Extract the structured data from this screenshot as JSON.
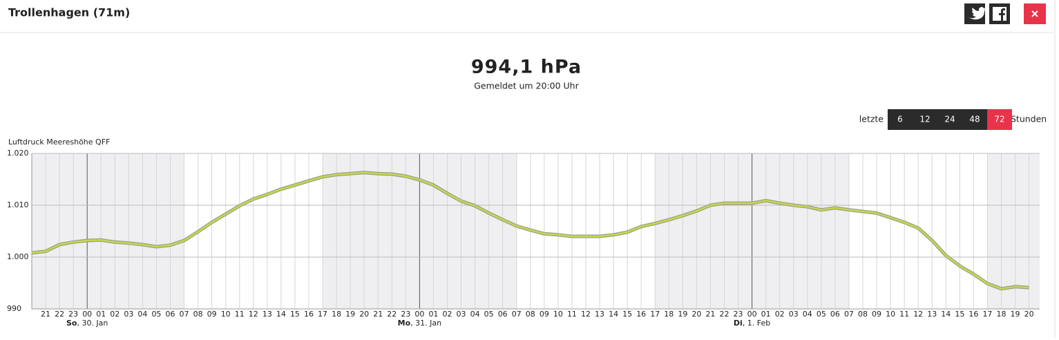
{
  "header": {
    "title": "Trollenhagen (71m)"
  },
  "reading": {
    "value": "994,1 hPa",
    "note": "Gemeldet um 20:00 Uhr"
  },
  "range": {
    "prefix": "letzte",
    "options": [
      "6",
      "12",
      "24",
      "48",
      "72"
    ],
    "selected": "72",
    "suffix": "Stunden"
  },
  "chart_data": {
    "type": "line",
    "y_label": "Luftdruck Meereshöhe QFF",
    "color": "#c8d84a",
    "ylim": [
      990,
      1020
    ],
    "yticks": [
      990,
      {
        "value": 1000,
        "label": "1.000"
      },
      {
        "value": 1010,
        "label": "1.010"
      },
      {
        "value": 1020,
        "label": "1.020"
      }
    ],
    "grid": true,
    "days": [
      {
        "hours": [
          null,
          "21",
          "22",
          "23"
        ]
      },
      {
        "weekday": "So",
        "date": ", 30. Jan",
        "hours": [
          "00",
          "01",
          "02",
          "03",
          "04",
          "05",
          "06",
          "07",
          "08",
          "09",
          "10",
          "11",
          "12",
          "13",
          "14",
          "15",
          "16",
          "17",
          "18",
          "19",
          "20",
          "21",
          "22",
          "23"
        ]
      },
      {
        "weekday": "Mo",
        "date": ", 31. Jan",
        "hours": [
          "00",
          "01",
          "02",
          "03",
          "04",
          "05",
          "06",
          "07",
          "08",
          "09",
          "10",
          "11",
          "12",
          "13",
          "14",
          "15",
          "16",
          "17",
          "18",
          "19",
          "20",
          "21",
          "22",
          "23"
        ]
      },
      {
        "weekday": "Di",
        "date": ", 1. Feb",
        "hours": [
          "00",
          "01",
          "02",
          "03",
          "04",
          "05",
          "06",
          "07",
          "08",
          "09",
          "10",
          "11",
          "12",
          "13",
          "14",
          "15",
          "16",
          "17",
          "18",
          "19",
          "20"
        ]
      }
    ],
    "values": [
      1000.8,
      1001.1,
      1002.4,
      1002.9,
      1003.2,
      1003.3,
      1002.9,
      1002.7,
      1002.4,
      1002.0,
      1002.3,
      1003.2,
      1004.9,
      1006.7,
      1008.3,
      1009.9,
      1011.2,
      1012.1,
      1013.1,
      1013.9,
      1014.7,
      1015.5,
      1015.9,
      1016.1,
      1016.3,
      1016.1,
      1016.0,
      1015.6,
      1014.9,
      1013.9,
      1012.3,
      1010.8,
      1009.9,
      1008.5,
      1007.2,
      1006.0,
      1005.2,
      1004.5,
      1004.3,
      1004.0,
      1004.0,
      1004.0,
      1004.3,
      1004.8,
      1005.9,
      1006.5,
      1007.2,
      1008.0,
      1008.9,
      1010.0,
      1010.4,
      1010.4,
      1010.4,
      1010.9,
      1010.4,
      1010.0,
      1009.7,
      1009.1,
      1009.5,
      1009.1,
      1008.8,
      1008.5,
      1007.6,
      1006.7,
      1005.6,
      1003.2,
      1000.3,
      998.3,
      996.7,
      994.9,
      993.9,
      994.3,
      994.1
    ]
  }
}
